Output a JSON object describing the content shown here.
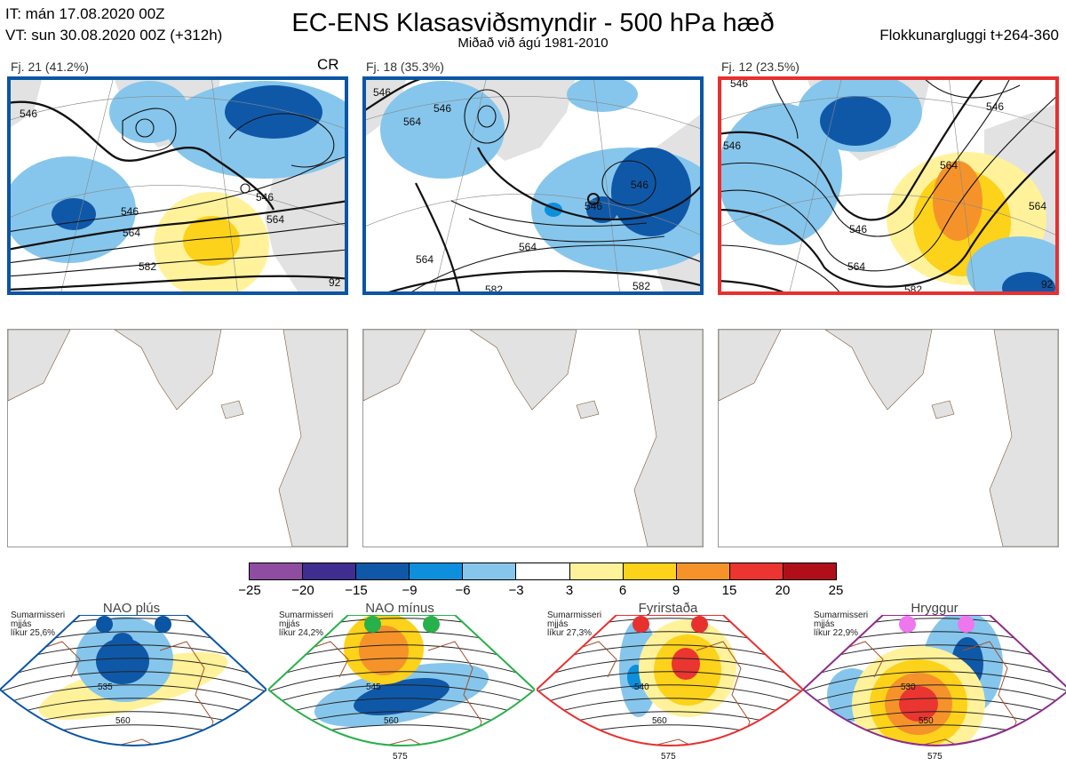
{
  "header": {
    "it_line": "IT: mán 17.08.2020 00Z",
    "vt_line": "VT: sun 30.08.2020 00Z  (+312h)",
    "title": "EC-ENS Klasasviðsmyndir - 500 hPa hæð",
    "subtitle": "Miðað við ágú 1981-2010",
    "window": "Flokkunargluggi t+264-360"
  },
  "clusters": [
    {
      "label": "Fj. 21 (41.2%)",
      "tag": "CR",
      "frame_color": "#0a55a4",
      "contours": [
        "546",
        "564",
        "582",
        "546",
        "546",
        "564",
        "92"
      ]
    },
    {
      "label": "Fj. 18 (35.3%)",
      "tag": "",
      "frame_color": "#0a55a4",
      "contours": [
        "546",
        "564",
        "546",
        "546",
        "546",
        "564",
        "564",
        "582",
        "582"
      ]
    },
    {
      "label": "Fj. 12 (23.5%)",
      "tag": "",
      "frame_color": "#e8302f",
      "contours": [
        "546",
        "546",
        "546",
        "564",
        "546",
        "564",
        "564",
        "582",
        "92"
      ]
    }
  ],
  "colorbar": {
    "ticks": [
      "−25",
      "−20",
      "−15",
      "−9",
      "−6",
      "−3",
      "3",
      "6",
      "9",
      "15",
      "20",
      "25"
    ],
    "colors": [
      "#8e4da0",
      "#3f2d8f",
      "#0f58a8",
      "#0e8fdc",
      "#86c6ec",
      "#ffffff",
      "#fff29a",
      "#fdd21a",
      "#f5932a",
      "#ea3530",
      "#b00f1a"
    ]
  },
  "regimes": [
    {
      "name": "NAO plús",
      "info": [
        "Sumarmisseri",
        "mjjás",
        "líkur 25,6%"
      ],
      "dot_color": "#0a55a4",
      "frame_color": "#0a55a4",
      "labels": [
        "535",
        "560"
      ]
    },
    {
      "name": "NAO mínus",
      "info": [
        "Sumarmisseri",
        "mjjás",
        "líkur 24,2%"
      ],
      "dot_color": "#28b04a",
      "frame_color": "#28b04a",
      "labels": [
        "545",
        "560",
        "575"
      ]
    },
    {
      "name": "Fyrirstaða",
      "info": [
        "Sumarmisseri",
        "mjjás",
        "líkur 27,3%"
      ],
      "dot_color": "#e8302f",
      "frame_color": "#e8302f",
      "labels": [
        "540",
        "560",
        "575"
      ]
    },
    {
      "name": "Hryggur",
      "info": [
        "Sumarmisseri",
        "mjjás",
        "líkur 22,9%"
      ],
      "dot_color": "#ee77ee",
      "frame_color": "#8c2c8c",
      "labels": [
        "530",
        "550",
        "575"
      ]
    }
  ]
}
